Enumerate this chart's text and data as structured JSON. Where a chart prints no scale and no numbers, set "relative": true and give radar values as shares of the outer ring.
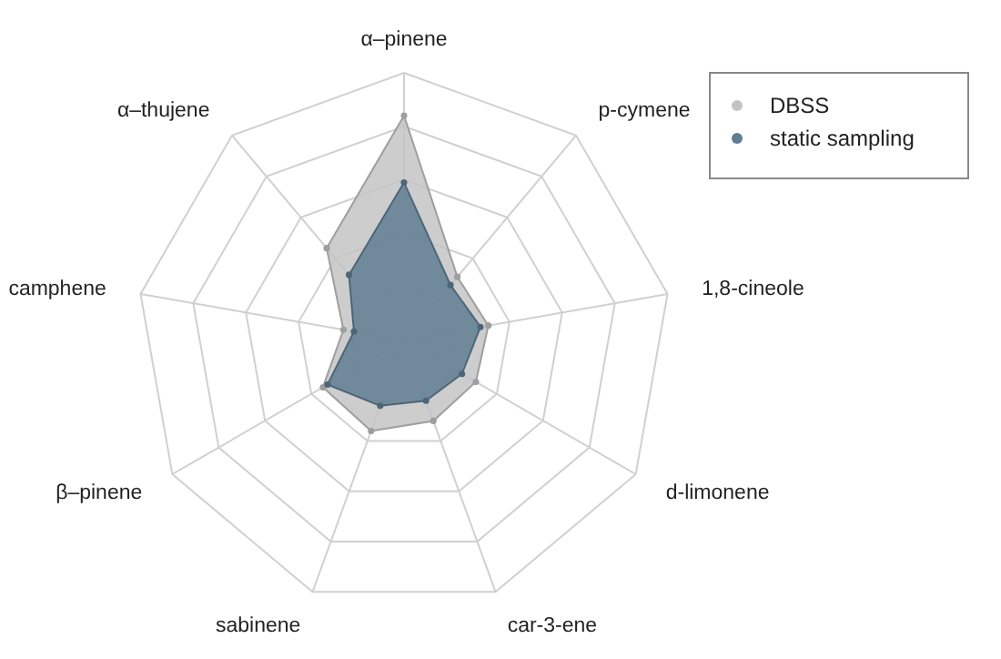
{
  "chart_data": {
    "type": "radar",
    "relative": true,
    "grid": true,
    "legend": "top right",
    "marker": "circle",
    "categories": [
      "α–pinene",
      "p-cymene",
      "1,8-cineole",
      "d-limonene",
      "car-3-ene",
      "sabinene",
      "β–pinene",
      "camphene",
      "α–thujene"
    ],
    "series": [
      {
        "name": "DBSS",
        "color": "#c4c4c4",
        "values": [
          0.84,
          0.31,
          0.32,
          0.31,
          0.32,
          0.36,
          0.35,
          0.23,
          0.45
        ]
      },
      {
        "name": "static sampling",
        "color": "#5f7e93",
        "values": [
          0.59,
          0.27,
          0.29,
          0.25,
          0.24,
          0.26,
          0.33,
          0.19,
          0.32
        ]
      }
    ]
  }
}
